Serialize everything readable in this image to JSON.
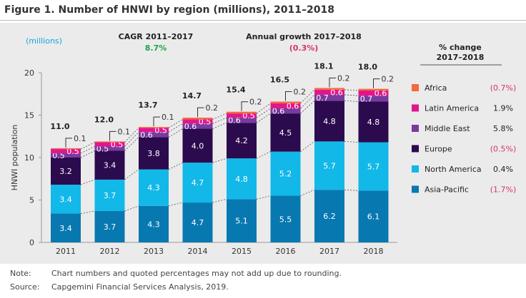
{
  "title": "Figure 1. Number of HNWI by region (millions), 2011–2018",
  "chart_data": {
    "type": "bar",
    "stacked": true,
    "units_label": "(millions)",
    "ylabel": "HNWI population",
    "ylim": [
      0,
      20
    ],
    "yticks": [
      0,
      5,
      10,
      15,
      20
    ],
    "categories": [
      "2011",
      "2012",
      "2013",
      "2014",
      "2015",
      "2016",
      "2017",
      "2018"
    ],
    "totals": [
      "11.0",
      "12.0",
      "13.7",
      "14.7",
      "15.4",
      "16.5",
      "18.1",
      "18.0"
    ],
    "series": [
      {
        "name": "Asia-Pacific",
        "color": "#0878b0",
        "values": [
          3.4,
          3.7,
          4.3,
          4.7,
          5.1,
          5.5,
          6.2,
          6.1
        ],
        "change": "(1.7%)",
        "negative": true
      },
      {
        "name": "North America",
        "color": "#12b8e8",
        "values": [
          3.4,
          3.7,
          4.3,
          4.7,
          4.8,
          5.2,
          5.7,
          5.7
        ],
        "change": "0.4%",
        "negative": false
      },
      {
        "name": "Europe",
        "color": "#2b0a4e",
        "values": [
          3.2,
          3.4,
          3.8,
          4.0,
          4.2,
          4.5,
          4.8,
          4.8
        ],
        "change": "(0.5%)",
        "negative": true
      },
      {
        "name": "Middle East",
        "color": "#7a3a9e",
        "values": [
          0.5,
          0.5,
          0.6,
          0.6,
          0.6,
          0.6,
          0.7,
          0.7
        ],
        "change": "5.8%",
        "negative": false
      },
      {
        "name": "Latin America",
        "color": "#e2168c",
        "values": [
          0.5,
          0.5,
          0.5,
          0.5,
          0.5,
          0.6,
          0.6,
          0.6
        ],
        "change": "1.9%",
        "negative": false
      },
      {
        "name": "Africa",
        "color": "#f26b3a",
        "values": [
          0.1,
          0.1,
          0.1,
          0.2,
          0.2,
          0.2,
          0.2,
          0.2
        ],
        "change": "(0.7%)",
        "negative": true
      }
    ],
    "cagr": {
      "label": "CAGR 2011–2017",
      "value": "8.7%",
      "color": "#1aa64a"
    },
    "annual_growth": {
      "label": "Annual growth 2017–2018",
      "value": "(0.3%)",
      "color": "#d6336c"
    },
    "legend_header": "% change\n2017–2018",
    "legend_placement": "right",
    "grid": false
  },
  "notes": {
    "note_label": "Note:",
    "note_text": "Chart numbers and quoted percentages may not add up due to rounding.",
    "source_label": "Source:",
    "source_text": "Capgemini Financial Services Analysis, 2019."
  }
}
